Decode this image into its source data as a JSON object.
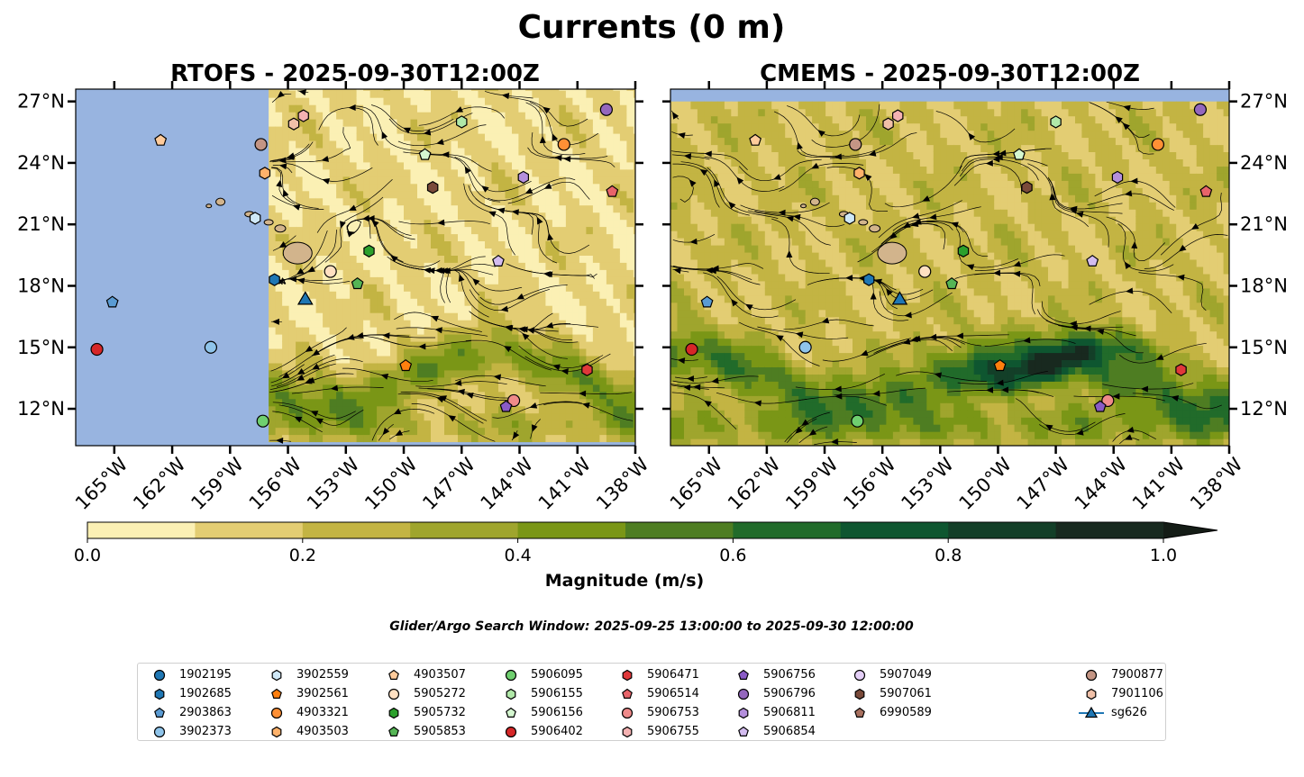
{
  "figure": {
    "title": "Currents (0 m)",
    "search_window": "Glider/Argo Search Window: 2025-09-25 13:00:00 to 2025-09-30 12:00:00",
    "colorbar_label": "Magnitude (m/s)",
    "colorbar_ticks": [
      "0.0",
      "0.2",
      "0.4",
      "0.6",
      "0.8",
      "1.0"
    ],
    "x_ticks": [
      "165°W",
      "162°W",
      "159°W",
      "156°W",
      "153°W",
      "150°W",
      "147°W",
      "144°W",
      "141°W",
      "138°W"
    ],
    "y_ticks": [
      "27°N",
      "24°N",
      "21°N",
      "18°N",
      "15°N",
      "12°N"
    ]
  },
  "chart_data": {
    "type": "heatmap",
    "panels": [
      {
        "title": "RTOFS - 2025-09-30T12:00Z",
        "model": "RTOFS",
        "data_extent_lon": [
          -157.0,
          -138.0
        ]
      },
      {
        "title": "CMEMS - 2025-09-30T12:00Z",
        "model": "CMEMS",
        "data_extent_lon": [
          -167.0,
          -138.0
        ]
      }
    ],
    "lon_range": [
      -167.0,
      -138.0
    ],
    "lat_range": [
      10.2,
      27.6
    ],
    "colorbar": {
      "range": [
        0.0,
        1.0
      ],
      "extend": "max",
      "levels": [
        0.0,
        0.1,
        0.2,
        0.3,
        0.4,
        0.5,
        0.6,
        0.7,
        0.8,
        0.9,
        1.0
      ],
      "colors": [
        "#fbf0b4",
        "#e3cd73",
        "#c3b443",
        "#9fa52d",
        "#7a9616",
        "#4e7d22",
        "#216b2a",
        "#0e5630",
        "#133f28",
        "#18291f"
      ]
    },
    "land_color": "#d2b48c",
    "nodata_color": "#98b4e0",
    "markers": [
      {
        "id": "1902195",
        "marker": "circle",
        "color": "#1f77b4"
      },
      {
        "id": "1902685",
        "marker": "hexagon",
        "color": "#1f77b4",
        "lon": -156.7,
        "lat": 18.3
      },
      {
        "id": "2903863",
        "marker": "pentagon",
        "color": "#5a9bd3",
        "lon": -165.1,
        "lat": 17.2
      },
      {
        "id": "3902373",
        "marker": "circle",
        "color": "#8fc4ea",
        "lon": -160.0,
        "lat": 15.0
      },
      {
        "id": "3902559",
        "marker": "hexagon",
        "color": "#cfe8f7",
        "lon": -157.7,
        "lat": 21.3
      },
      {
        "id": "3902561",
        "marker": "pentagon",
        "color": "#ff7f0e",
        "lon": -149.9,
        "lat": 14.1
      },
      {
        "id": "4903321",
        "marker": "circle",
        "color": "#ff9035",
        "lon": -141.7,
        "lat": 24.9
      },
      {
        "id": "4903503",
        "marker": "hexagon",
        "color": "#ffb26b",
        "lon": -157.2,
        "lat": 23.5
      },
      {
        "id": "4903507",
        "marker": "pentagon",
        "color": "#ffcb9b",
        "lon": -162.6,
        "lat": 25.1
      },
      {
        "id": "5905272",
        "marker": "circle",
        "color": "#ffe0c2",
        "lon": -153.8,
        "lat": 18.7
      },
      {
        "id": "5905732",
        "marker": "hexagon",
        "color": "#2ca02c",
        "lon": -151.8,
        "lat": 19.7
      },
      {
        "id": "5905853",
        "marker": "pentagon",
        "color": "#55b555",
        "lon": -152.4,
        "lat": 18.1
      },
      {
        "id": "6095",
        "full": "5906095",
        "marker": "circle",
        "color": "#6fcf6f",
        "lon": -157.3,
        "lat": 11.4
      },
      {
        "id": "5906155",
        "marker": "hexagon",
        "color": "#b0e8a8",
        "lon": -147.0,
        "lat": 26.0
      },
      {
        "id": "5906156",
        "marker": "pentagon",
        "color": "#d5f7d0",
        "lon": -148.9,
        "lat": 24.4
      },
      {
        "id": "5906402",
        "marker": "circle",
        "color": "#d62728",
        "lon": -165.9,
        "lat": 14.9
      },
      {
        "id": "5906471",
        "marker": "hexagon",
        "color": "#e0383a",
        "lon": -140.5,
        "lat": 13.9
      },
      {
        "id": "5906514",
        "marker": "pentagon",
        "color": "#e8646a",
        "lon": -139.2,
        "lat": 22.6
      },
      {
        "id": "5906753",
        "marker": "circle",
        "color": "#ef8a8a",
        "lon": -144.3,
        "lat": 12.4
      },
      {
        "id": "5906755",
        "marker": "hexagon",
        "color": "#f5b2b2",
        "lon": -155.2,
        "lat": 26.3
      },
      {
        "id": "5906756",
        "marker": "pentagon",
        "color": "#8a5bc6",
        "lon": -144.7,
        "lat": 12.1
      },
      {
        "id": "5906796",
        "marker": "circle",
        "color": "#9467bd",
        "lon": -139.5,
        "lat": 26.6
      },
      {
        "id": "5906811",
        "marker": "hexagon",
        "color": "#b48fdc",
        "lon": -143.8,
        "lat": 23.3
      },
      {
        "id": "5906854",
        "marker": "pentagon",
        "color": "#d3bcef",
        "lon": -145.1,
        "lat": 19.2
      },
      {
        "id": "5907049",
        "marker": "circle",
        "color": "#e4cff7"
      },
      {
        "id": "5907061",
        "marker": "hexagon",
        "color": "#7a4a3a",
        "lon": -148.5,
        "lat": 22.8
      },
      {
        "id": "6990589",
        "marker": "pentagon",
        "color": "#a8705f"
      },
      {
        "id": "7900877",
        "marker": "circle",
        "color": "#c49584",
        "lon": -157.4,
        "lat": 24.9
      },
      {
        "id": "7901106",
        "marker": "hexagon",
        "color": "#f0c0a8",
        "lon": -155.7,
        "lat": 25.9
      },
      {
        "id": "sg626",
        "marker": "triangle",
        "color": "#1f77b4",
        "lon": -155.1,
        "lat": 17.3
      }
    ]
  },
  "legend": [
    {
      "label": "1902195",
      "shape": "circle",
      "color": "#1f77b4"
    },
    {
      "label": "1902685",
      "shape": "hexagon",
      "color": "#1f77b4"
    },
    {
      "label": "2903863",
      "shape": "pentagon",
      "color": "#5a9bd3"
    },
    {
      "label": "3902373",
      "shape": "circle",
      "color": "#8fc4ea"
    },
    {
      "label": "3902559",
      "shape": "hexagon",
      "color": "#cfe8f7"
    },
    {
      "label": "3902561",
      "shape": "pentagon",
      "color": "#ff7f0e"
    },
    {
      "label": "4903321",
      "shape": "circle",
      "color": "#ff9035"
    },
    {
      "label": "4903503",
      "shape": "hexagon",
      "color": "#ffb26b"
    },
    {
      "label": "4903507",
      "shape": "pentagon",
      "color": "#ffcb9b"
    },
    {
      "label": "5905272",
      "shape": "circle",
      "color": "#ffe0c2"
    },
    {
      "label": "5905732",
      "shape": "hexagon",
      "color": "#2ca02c"
    },
    {
      "label": "5905853",
      "shape": "pentagon",
      "color": "#55b555"
    },
    {
      "label": "5906095",
      "shape": "circle",
      "color": "#6fcf6f"
    },
    {
      "label": "5906155",
      "shape": "hexagon",
      "color": "#b0e8a8"
    },
    {
      "label": "5906156",
      "shape": "pentagon",
      "color": "#d5f7d0"
    },
    {
      "label": "5906402",
      "shape": "circle",
      "color": "#d62728"
    },
    {
      "label": "5906471",
      "shape": "hexagon",
      "color": "#e0383a"
    },
    {
      "label": "5906514",
      "shape": "pentagon",
      "color": "#e8646a"
    },
    {
      "label": "5906753",
      "shape": "circle",
      "color": "#ef8a8a"
    },
    {
      "label": "5906755",
      "shape": "hexagon",
      "color": "#f5b2b2"
    },
    {
      "label": "5906756",
      "shape": "pentagon",
      "color": "#8a5bc6"
    },
    {
      "label": "5906796",
      "shape": "circle",
      "color": "#9467bd"
    },
    {
      "label": "5906811",
      "shape": "hexagon",
      "color": "#b48fdc"
    },
    {
      "label": "5906854",
      "shape": "pentagon",
      "color": "#d3bcef"
    },
    {
      "label": "5907049",
      "shape": "circle",
      "color": "#e4cff7"
    },
    {
      "label": "5907061",
      "shape": "hexagon",
      "color": "#7a4a3a"
    },
    {
      "label": "6990589",
      "shape": "pentagon",
      "color": "#a8705f"
    },
    {
      "label": "7900877",
      "shape": "circle",
      "color": "#c49584"
    },
    {
      "label": "7901106",
      "shape": "hexagon",
      "color": "#f0c0a8"
    },
    {
      "label": "sg626",
      "shape": "triangle",
      "color": "#1f77b4"
    }
  ]
}
